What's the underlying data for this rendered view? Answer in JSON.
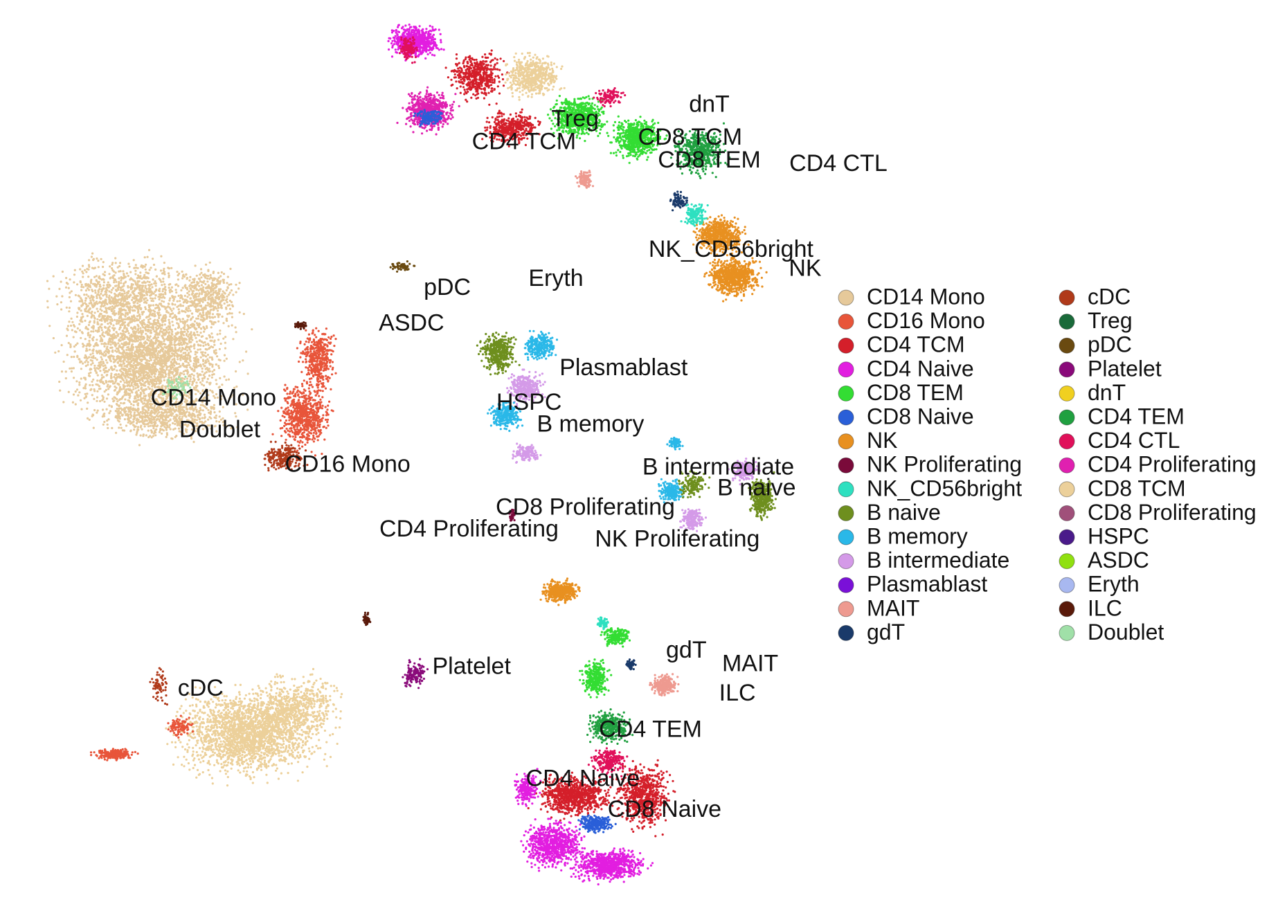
{
  "chart_data": {
    "type": "scatter",
    "title": "",
    "xlabel": "",
    "ylabel": "",
    "legend_placement": "right",
    "grid": false,
    "axes_visible": false,
    "cell_types": [
      {
        "name": "CD14 Mono",
        "color": "#e6c99a"
      },
      {
        "name": "CD16 Mono",
        "color": "#e8553a"
      },
      {
        "name": "CD4 TCM",
        "color": "#d41f2a"
      },
      {
        "name": "CD4 Naive",
        "color": "#e21ee0"
      },
      {
        "name": "CD8 TEM",
        "color": "#33dd33"
      },
      {
        "name": "CD8 Naive",
        "color": "#2a5fd8"
      },
      {
        "name": "NK",
        "color": "#e89020"
      },
      {
        "name": "NK Proliferating",
        "color": "#7a0a3a"
      },
      {
        "name": "NK_CD56bright",
        "color": "#2ee0c0"
      },
      {
        "name": "B naive",
        "color": "#6e8f1e"
      },
      {
        "name": "B memory",
        "color": "#2ab8e8"
      },
      {
        "name": "B intermediate",
        "color": "#d49ae8"
      },
      {
        "name": "Plasmablast",
        "color": "#7a10d8"
      },
      {
        "name": "MAIT",
        "color": "#ee9a90"
      },
      {
        "name": "gdT",
        "color": "#1a3a6a"
      },
      {
        "name": "cDC",
        "color": "#b03a1a"
      },
      {
        "name": "Treg",
        "color": "#1a6a3a"
      },
      {
        "name": "pDC",
        "color": "#6a4a10"
      },
      {
        "name": "Platelet",
        "color": "#8a0a7a"
      },
      {
        "name": "dnT",
        "color": "#f0d020"
      },
      {
        "name": "CD4 TEM",
        "color": "#20a040"
      },
      {
        "name": "CD4 CTL",
        "color": "#e0105a"
      },
      {
        "name": "CD4 Proliferating",
        "color": "#e020b0"
      },
      {
        "name": "CD8 TCM",
        "color": "#ecd09a"
      },
      {
        "name": "CD8 Proliferating",
        "color": "#a0507a"
      },
      {
        "name": "HSPC",
        "color": "#4a1a8a"
      },
      {
        "name": "ASDC",
        "color": "#90e010"
      },
      {
        "name": "Eryth",
        "color": "#a8b8f0"
      },
      {
        "name": "ILC",
        "color": "#5a1a0a"
      },
      {
        "name": "Doublet",
        "color": "#a0e0a8"
      }
    ],
    "cluster_labels": [
      {
        "text": "dnT",
        "x": 0.555,
        "y": 0.116
      },
      {
        "text": "Treg",
        "x": 0.45,
        "y": 0.132
      },
      {
        "text": "CD8 TCM",
        "x": 0.54,
        "y": 0.152
      },
      {
        "text": "CD4 TCM",
        "x": 0.41,
        "y": 0.157
      },
      {
        "text": "CD8 TEM",
        "x": 0.555,
        "y": 0.177
      },
      {
        "text": "CD4 CTL",
        "x": 0.656,
        "y": 0.181
      },
      {
        "text": "NK_CD56bright",
        "x": 0.572,
        "y": 0.275
      },
      {
        "text": "NK",
        "x": 0.63,
        "y": 0.296
      },
      {
        "text": "pDC",
        "x": 0.35,
        "y": 0.317
      },
      {
        "text": "Eryth",
        "x": 0.435,
        "y": 0.307
      },
      {
        "text": "ASDC",
        "x": 0.322,
        "y": 0.356
      },
      {
        "text": "Plasmablast",
        "x": 0.488,
        "y": 0.405
      },
      {
        "text": "HSPC",
        "x": 0.414,
        "y": 0.443
      },
      {
        "text": "CD14 Mono",
        "x": 0.167,
        "y": 0.438
      },
      {
        "text": "B memory",
        "x": 0.462,
        "y": 0.467
      },
      {
        "text": "Doublet",
        "x": 0.172,
        "y": 0.473
      },
      {
        "text": "CD16 Mono",
        "x": 0.272,
        "y": 0.511
      },
      {
        "text": "B intermediate",
        "x": 0.562,
        "y": 0.514
      },
      {
        "text": "B naive",
        "x": 0.592,
        "y": 0.537
      },
      {
        "text": "CD8 Proliferating",
        "x": 0.458,
        "y": 0.558
      },
      {
        "text": "CD4 Proliferating",
        "x": 0.367,
        "y": 0.582
      },
      {
        "text": "NK Proliferating",
        "x": 0.53,
        "y": 0.593
      },
      {
        "text": "gdT",
        "x": 0.537,
        "y": 0.715
      },
      {
        "text": "MAIT",
        "x": 0.587,
        "y": 0.73
      },
      {
        "text": "Platelet",
        "x": 0.369,
        "y": 0.733
      },
      {
        "text": "ILC",
        "x": 0.577,
        "y": 0.762
      },
      {
        "text": "cDC",
        "x": 0.157,
        "y": 0.757
      },
      {
        "text": "CD4 TEM",
        "x": 0.509,
        "y": 0.802
      },
      {
        "text": "CD4 Naive",
        "x": 0.456,
        "y": 0.856
      },
      {
        "text": "CD8 Naive",
        "x": 0.52,
        "y": 0.89
      }
    ]
  }
}
